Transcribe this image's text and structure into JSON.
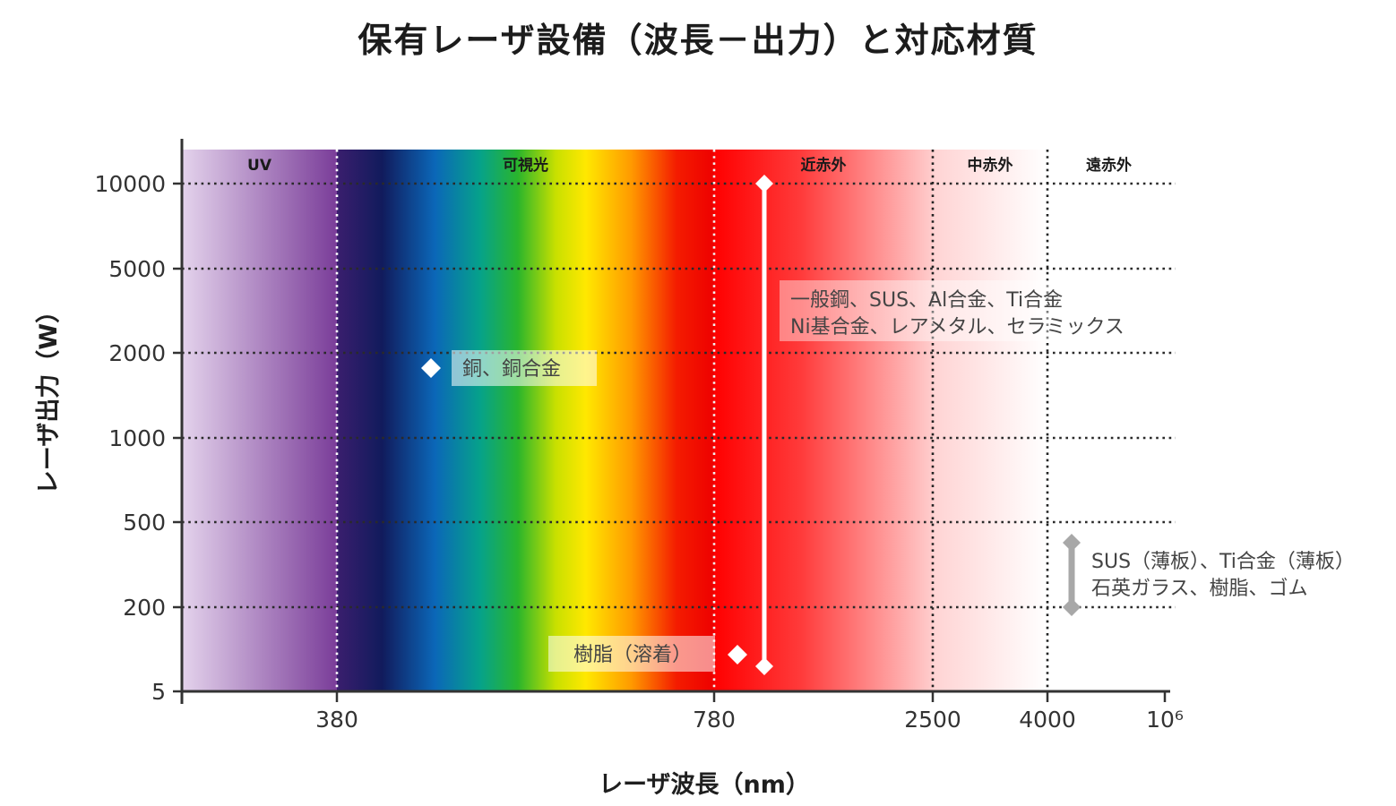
{
  "chart_data": {
    "type": "scatter",
    "title": "保有レーザ設備（波長－出力）と対応材質",
    "xlabel": "レーザ波長（nm）",
    "ylabel": "レーザ出力（W）",
    "x_scale": "categorical-breakpoints",
    "x_ticks": [
      "380",
      "780",
      "2500",
      "4000",
      "10⁶"
    ],
    "y_ticks": [
      "10000",
      "5000",
      "2000",
      "1000",
      "500",
      "200",
      "5"
    ],
    "grid": "dotted",
    "bands": [
      {
        "name": "UV",
        "from": null,
        "to": 380
      },
      {
        "name": "可視光",
        "from": 380,
        "to": 780
      },
      {
        "name": "近赤外",
        "from": 780,
        "to": 2500
      },
      {
        "name": "中赤外",
        "from": 2500,
        "to": 4000
      },
      {
        "name": "遠赤外",
        "from": 4000,
        "to": 1000000
      }
    ],
    "points": [
      {
        "wavelength_nm": 532,
        "power_w": 1700,
        "label": "銅、銅合金",
        "marker": "diamond"
      },
      {
        "wavelength_nm": 800,
        "power_w": 100,
        "label": "樹脂（溶着）",
        "marker": "diamond"
      }
    ],
    "ranges": [
      {
        "wavelength_nm": 1070,
        "power_min_w": 5,
        "power_max_w": 10000,
        "label_lines": [
          "一般鋼、SUS、Al合金、Ti合金",
          "Ni基合金、レアメタル、セラミックス"
        ],
        "color": "#ffffff"
      },
      {
        "wavelength_nm": 10600,
        "power_min_w": 200,
        "power_max_w": 400,
        "label_lines": [
          "SUS（薄板）、Ti合金（薄板）",
          "石英ガラス、樹脂、ゴム"
        ],
        "color": "#a8a8a8"
      }
    ]
  }
}
